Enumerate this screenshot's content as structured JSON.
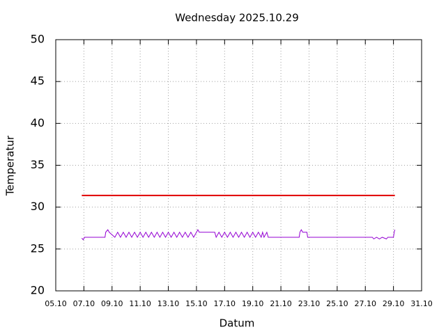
{
  "chart_data": {
    "type": "line",
    "title": "Wednesday 2025.10.29",
    "xlabel": "Datum",
    "ylabel": "Temperatur",
    "xlim": [
      5,
      31
    ],
    "xticks": [
      {
        "value": 5,
        "label": "05.10"
      },
      {
        "value": 7,
        "label": "07.10"
      },
      {
        "value": 9,
        "label": "09.10"
      },
      {
        "value": 11,
        "label": "11.10"
      },
      {
        "value": 13,
        "label": "13.10"
      },
      {
        "value": 15,
        "label": "15.10"
      },
      {
        "value": 17,
        "label": "17.10"
      },
      {
        "value": 19,
        "label": "19.10"
      },
      {
        "value": 21,
        "label": "21.10"
      },
      {
        "value": 23,
        "label": "23.10"
      },
      {
        "value": 25,
        "label": "25.10"
      },
      {
        "value": 27,
        "label": "27.10"
      },
      {
        "value": 29,
        "label": "29.10"
      },
      {
        "value": 31,
        "label": "31.10"
      }
    ],
    "ylim": [
      20,
      50
    ],
    "yticks": [
      20,
      25,
      30,
      35,
      40,
      45,
      50
    ],
    "grid": true,
    "series": [
      {
        "color": "#e00000",
        "x": [
          6.85,
          29.1
        ],
        "values": [
          31.4,
          31.4
        ]
      },
      {
        "color": "#9400d3",
        "x": [
          6.85,
          6.95,
          7.05,
          8.5,
          8.55,
          8.7,
          8.8,
          9.2,
          9.4,
          9.6,
          9.8,
          10.0,
          10.2,
          10.4,
          10.6,
          10.8,
          11.0,
          11.2,
          11.4,
          11.6,
          11.8,
          12.0,
          12.2,
          12.4,
          12.6,
          12.8,
          13.0,
          13.2,
          13.4,
          13.6,
          13.8,
          14.0,
          14.2,
          14.4,
          14.6,
          14.8,
          15.0,
          15.1,
          15.2,
          16.3,
          16.4,
          16.6,
          16.8,
          17.0,
          17.2,
          17.4,
          17.6,
          17.8,
          18.0,
          18.2,
          18.4,
          18.6,
          18.8,
          19.0,
          19.2,
          19.4,
          19.6,
          19.7,
          19.8,
          20.0,
          20.1,
          22.3,
          22.35,
          22.45,
          22.55,
          22.85,
          22.9,
          27.5,
          27.6,
          27.8,
          28.0,
          28.2,
          28.5,
          28.6,
          29.0,
          29.05,
          29.1
        ],
        "values": [
          26.3,
          26.1,
          26.4,
          26.4,
          27.0,
          27.3,
          27.0,
          26.4,
          27.0,
          26.4,
          27.0,
          26.4,
          27.0,
          26.4,
          27.0,
          26.4,
          27.0,
          26.4,
          27.0,
          26.4,
          27.0,
          26.4,
          27.0,
          26.4,
          27.0,
          26.4,
          27.0,
          26.4,
          27.0,
          26.4,
          27.0,
          26.4,
          27.0,
          26.4,
          27.0,
          26.4,
          27.0,
          27.3,
          27.0,
          27.0,
          26.4,
          27.0,
          26.4,
          27.0,
          26.4,
          27.0,
          26.4,
          27.0,
          26.4,
          27.0,
          26.4,
          27.0,
          26.4,
          27.0,
          26.4,
          27.0,
          26.4,
          27.0,
          26.4,
          27.0,
          26.4,
          26.4,
          27.0,
          27.3,
          27.0,
          27.0,
          26.4,
          26.4,
          26.2,
          26.4,
          26.2,
          26.4,
          26.2,
          26.4,
          26.4,
          27.0,
          27.3
        ]
      }
    ]
  }
}
